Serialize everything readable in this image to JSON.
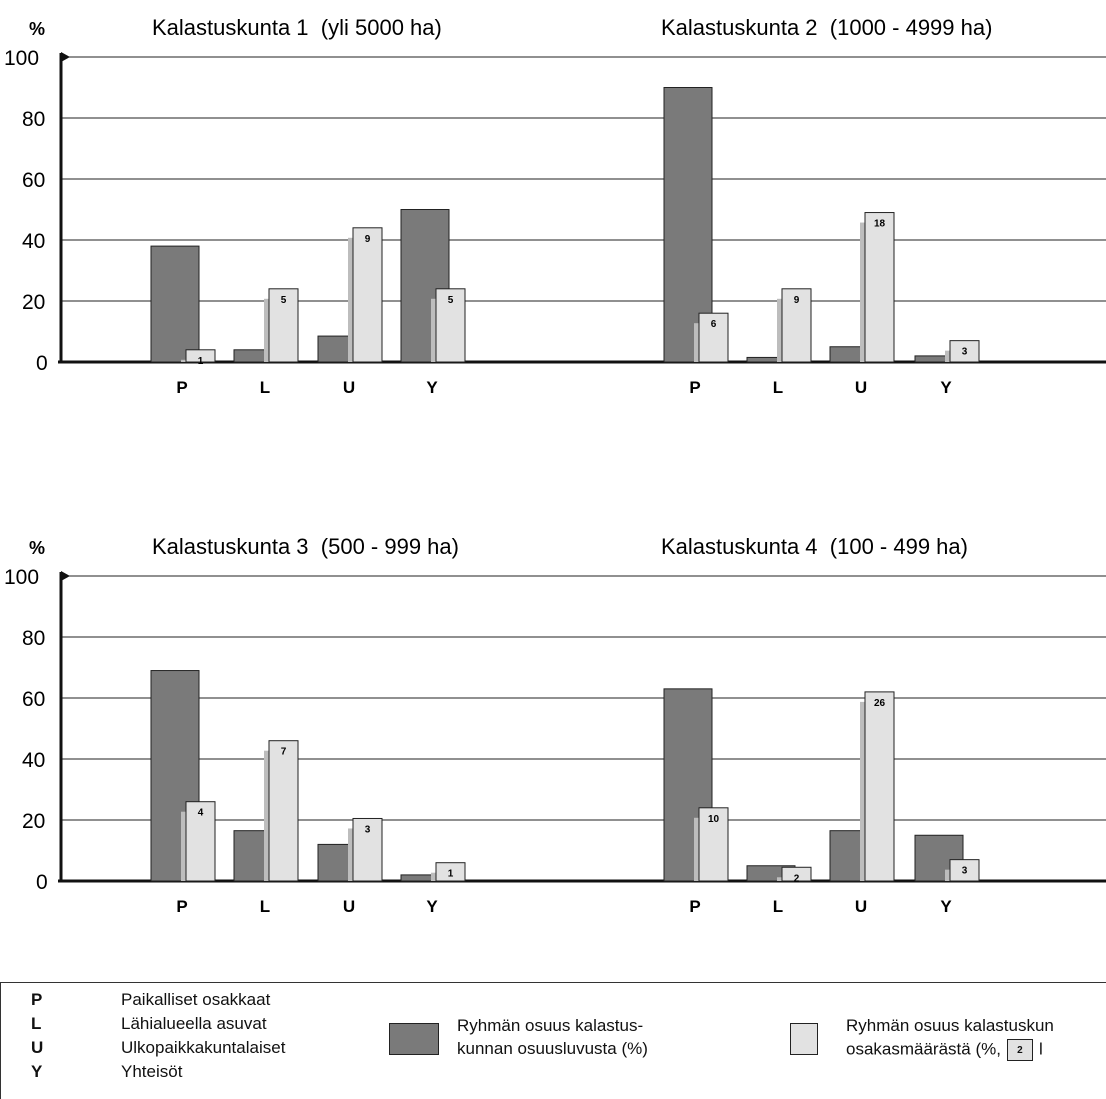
{
  "chart_data": [
    {
      "type": "bar",
      "title": "Kalastuskunta 1  (yli 5000 ha)",
      "ylabel": "%",
      "ylim": [
        0,
        100
      ],
      "yticks": [
        "0",
        "20",
        "40",
        "60",
        "80",
        "100"
      ],
      "categories": [
        "P",
        "L",
        "U",
        "Y"
      ],
      "series": [
        {
          "name": "Ryhmän osuus kalastuskunnan osuusluvusta (%)",
          "values": [
            38,
            4,
            8.5,
            50
          ]
        },
        {
          "name": "Ryhmän osuus kalastuskunnan osakasmäärästä",
          "values": [
            4,
            24,
            44,
            24
          ],
          "labels": [
            "1",
            "5",
            "9",
            "5"
          ]
        }
      ]
    },
    {
      "type": "bar",
      "title": "Kalastuskunta 2  (1000 - 4999 ha)",
      "ylim": [
        0,
        100
      ],
      "categories": [
        "P",
        "L",
        "U",
        "Y"
      ],
      "series": [
        {
          "name": "Ryhmän osuus kalastuskunnan osuusluvusta (%)",
          "values": [
            90,
            1.5,
            5,
            2
          ]
        },
        {
          "name": "Ryhmän osuus kalastuskunnan osakasmäärästä",
          "values": [
            16,
            24,
            49,
            7
          ],
          "labels": [
            "6",
            "9",
            "18",
            "3"
          ]
        }
      ]
    },
    {
      "type": "bar",
      "title": "Kalastuskunta 3  (500 - 999 ha)",
      "ylabel": "%",
      "ylim": [
        0,
        100
      ],
      "yticks": [
        "0",
        "20",
        "40",
        "60",
        "80",
        "100"
      ],
      "categories": [
        "P",
        "L",
        "U",
        "Y"
      ],
      "series": [
        {
          "name": "Ryhmän osuus kalastuskunnan osuusluvusta (%)",
          "values": [
            69,
            16.5,
            12,
            2
          ]
        },
        {
          "name": "Ryhmän osuus kalastuskunnan osakasmäärästä",
          "values": [
            26,
            46,
            20.5,
            6
          ],
          "labels": [
            "4",
            "7",
            "3",
            "1"
          ]
        }
      ]
    },
    {
      "type": "bar",
      "title": "Kalastuskunta 4  (100 - 499 ha)",
      "ylim": [
        0,
        100
      ],
      "categories": [
        "P",
        "L",
        "U",
        "Y"
      ],
      "series": [
        {
          "name": "Ryhmän osuus kalastuskunnan osuusluvusta (%)",
          "values": [
            63,
            5,
            16.5,
            15
          ]
        },
        {
          "name": "Ryhmän osuus kalastuskunnan osakasmäärästä",
          "values": [
            24,
            4.5,
            62,
            7
          ],
          "labels": [
            "10",
            "2",
            "26",
            "3"
          ]
        }
      ]
    }
  ],
  "colors": {
    "dark_bar": "#7a7a7a",
    "light_bar": "#e2e2e2",
    "shadow": "#bdbdbd",
    "axis": "#111111",
    "grid": "#222222"
  },
  "legend": {
    "abbreviations": [
      {
        "letter": "P",
        "text": "Paikalliset osakkaat"
      },
      {
        "letter": "L",
        "text": "Lähialueella asuvat"
      },
      {
        "letter": "U",
        "text": "Ulkopaikkakuntalaiset"
      },
      {
        "letter": "Y",
        "text": "Yhteisöt"
      }
    ],
    "dark_line1": "Ryhmän osuus kalastus-",
    "dark_line2": "kunnan osuusluvusta (%)",
    "light_line1": "Ryhmän osuus kalastuskun",
    "light_line2": "osakasmäärästä (%,",
    "light_box_label": "2",
    "light_tail": "l"
  }
}
